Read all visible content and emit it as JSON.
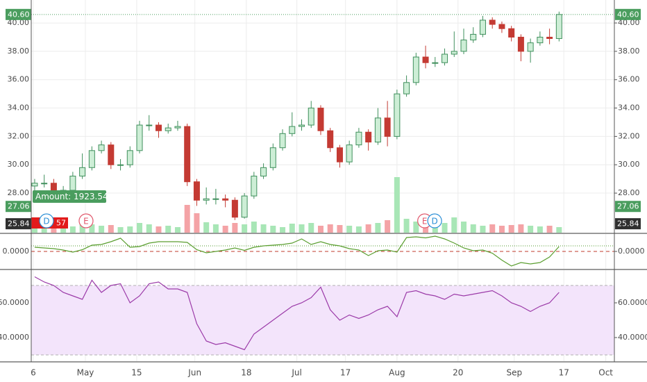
{
  "chart_data": [
    {
      "type": "candlestick",
      "x": [
        0,
        1,
        2,
        3,
        4,
        5,
        6,
        7,
        8,
        9,
        10,
        11,
        12,
        13,
        14,
        15,
        16,
        17,
        18,
        19,
        20,
        21,
        22,
        23,
        24,
        25,
        26,
        27,
        28,
        29,
        30,
        31,
        32,
        33,
        34,
        35,
        36,
        37,
        38,
        39,
        40,
        41,
        42,
        43,
        44,
        45,
        46,
        47,
        48,
        49,
        50,
        51,
        52,
        53,
        54,
        55
      ],
      "open": [
        28.5,
        28.7,
        28.7,
        28.0,
        28.2,
        29.2,
        29.8,
        31.0,
        31.4,
        30.0,
        30.0,
        31.0,
        32.8,
        32.8,
        32.4,
        32.6,
        32.7,
        28.8,
        27.5,
        27.6,
        27.6,
        27.5,
        26.3,
        27.8,
        29.2,
        29.8,
        31.2,
        32.2,
        32.7,
        32.8,
        34.0,
        32.4,
        31.2,
        30.2,
        31.4,
        32.3,
        31.6,
        33.3,
        32.0,
        35.0,
        35.8,
        37.6,
        37.2,
        37.2,
        37.8,
        38.0,
        38.8,
        39.2,
        40.2,
        39.9,
        39.6,
        39.0,
        38.0,
        38.6,
        39.0,
        38.9
      ],
      "high": [
        29.0,
        29.3,
        29.0,
        28.5,
        29.5,
        30.8,
        31.3,
        31.7,
        31.6,
        30.4,
        31.3,
        33.1,
        33.5,
        33.0,
        32.9,
        33.1,
        32.9,
        29.0,
        28.4,
        28.3,
        27.9,
        27.7,
        28.0,
        29.5,
        30.1,
        31.5,
        32.5,
        33.7,
        33.2,
        34.5,
        34.2,
        32.6,
        31.4,
        31.7,
        32.6,
        32.5,
        34.0,
        34.5,
        35.3,
        36.3,
        37.9,
        38.4,
        37.6,
        38.2,
        39.4,
        39.6,
        39.7,
        40.5,
        40.4,
        40.1,
        39.8,
        39.2,
        38.9,
        39.4,
        39.6,
        40.8
      ],
      "low": [
        28.2,
        28.4,
        27.7,
        27.6,
        28.0,
        29.0,
        29.6,
        30.8,
        29.7,
        29.6,
        29.8,
        30.8,
        32.4,
        31.9,
        32.2,
        32.4,
        28.5,
        27.1,
        27.2,
        27.2,
        27.0,
        26.1,
        26.2,
        27.6,
        29.0,
        29.6,
        31.0,
        32.0,
        32.4,
        32.6,
        32.1,
        30.9,
        29.8,
        30.0,
        31.2,
        31.0,
        31.4,
        31.3,
        31.8,
        34.8,
        35.6,
        36.8,
        36.9,
        37.0,
        37.6,
        37.8,
        38.6,
        39.0,
        39.6,
        39.3,
        38.7,
        37.3,
        37.2,
        38.4,
        38.5,
        38.7
      ],
      "close": [
        28.7,
        28.7,
        28.0,
        28.2,
        29.2,
        29.8,
        31.0,
        31.4,
        30.0,
        30.0,
        31.0,
        32.8,
        32.8,
        32.4,
        32.6,
        32.7,
        28.8,
        27.5,
        27.6,
        27.6,
        27.5,
        26.3,
        27.8,
        29.2,
        29.8,
        31.2,
        32.2,
        32.7,
        32.8,
        34.0,
        32.4,
        31.2,
        30.2,
        31.4,
        32.3,
        31.6,
        33.3,
        32.0,
        35.0,
        35.8,
        37.6,
        37.2,
        37.2,
        37.8,
        38.0,
        38.8,
        39.2,
        40.2,
        39.9,
        39.6,
        39.0,
        38.0,
        38.6,
        39.0,
        38.9,
        40.6
      ],
      "up_color": "#3f8f5c",
      "up_fill": "#cdeed6",
      "down_color": "#c43a33",
      "xlim": [
        -0.36,
        60.8
      ],
      "xticks": [
        {
          "value": -0.15,
          "label": "6"
        },
        {
          "value": 5.32,
          "label": "May"
        },
        {
          "value": 10.7,
          "label": "15"
        },
        {
          "value": 16.8,
          "label": "Jun"
        },
        {
          "value": 22.2,
          "label": "18"
        },
        {
          "value": 27.5,
          "label": "Jul"
        },
        {
          "value": 32.6,
          "label": "17"
        },
        {
          "value": 38.0,
          "label": "Aug"
        },
        {
          "value": 44.4,
          "label": "20"
        },
        {
          "value": 50.3,
          "label": "Sep"
        },
        {
          "value": 55.5,
          "label": "17"
        },
        {
          "value": 59.9,
          "label": "Oct"
        }
      ],
      "ylim": [
        25.21,
        41.62
      ],
      "yticks": [
        {
          "value": 28,
          "label": "28.00"
        },
        {
          "value": 30,
          "label": "30.00"
        },
        {
          "value": 32,
          "label": "32.00"
        },
        {
          "value": 34,
          "label": "34.00"
        },
        {
          "value": 36,
          "label": "36.00"
        },
        {
          "value": 38,
          "label": "38.00"
        },
        {
          "value": 40,
          "label": "40.00"
        }
      ],
      "grid": true,
      "price_markers": [
        {
          "value": 40.6,
          "label": "40.60",
          "color": "#4a9d5e",
          "dotted_line": true
        },
        {
          "value": 27.06,
          "label": "27.06",
          "color": "#4a9d5e"
        },
        {
          "value": 25.84,
          "label": "25.84",
          "color": "#2f2f2f"
        }
      ],
      "annotation": "Amount: 1923.54",
      "order_label": "57",
      "events": [
        {
          "x": 1.24,
          "label": "D",
          "color": "#2b8fd6"
        },
        {
          "x": 5.39,
          "label": "E",
          "color": "#e0566a"
        },
        {
          "x": 40.9,
          "label": "E",
          "color": "#e0566a"
        },
        {
          "x": 41.95,
          "label": "D",
          "color": "#2b8fd6"
        }
      ],
      "volume": {
        "values": [
          10,
          12,
          8,
          10,
          9,
          14,
          12,
          10,
          11,
          8,
          9,
          14,
          12,
          9,
          10,
          8,
          40,
          28,
          15,
          12,
          10,
          14,
          12,
          16,
          12,
          10,
          8,
          13,
          12,
          14,
          10,
          12,
          11,
          10,
          9,
          12,
          14,
          18,
          80,
          20,
          16,
          18,
          12,
          14,
          22,
          16,
          12,
          10,
          12,
          10,
          11,
          12,
          10,
          9,
          10,
          8
        ],
        "ylim": [
          0,
          335
        ],
        "up_color": "#a8e6b6",
        "down_color": "#f4a3a6"
      }
    },
    {
      "type": "line",
      "values": [
        0.24,
        0.2,
        0.16,
        0.08,
        -0.04,
        0.1,
        0.36,
        0.4,
        0.56,
        0.76,
        0.24,
        0.28,
        0.48,
        0.56,
        0.56,
        0.56,
        0.52,
        0.1,
        -0.08,
        0,
        0.08,
        0.2,
        0.06,
        0.24,
        0.32,
        0.36,
        0.4,
        0.48,
        0.72,
        0.4,
        0.56,
        0.4,
        0.32,
        0.16,
        0.08,
        -0.24,
        0.04,
        0.08,
        -0.04,
        0.8,
        0.84,
        0.78,
        0.88,
        0.72,
        0.48,
        0.2,
        0.04,
        0.08,
        -0.1,
        -0.5,
        -0.84,
        -0.64,
        -0.72,
        -0.64,
        -0.32,
        0.28
      ],
      "color": "#5a9e2f",
      "ylim": [
        -1,
        1
      ],
      "yticks": [
        {
          "value": 0,
          "label": "0.0000"
        }
      ],
      "reference_lines": [
        {
          "value": 0,
          "color": "#c0392b",
          "dash": "5,4"
        },
        {
          "value": 0.32,
          "color": "#4c9a2a",
          "dash": "1,2"
        }
      ]
    },
    {
      "type": "line",
      "values": [
        75,
        72,
        70,
        66,
        64,
        62,
        73,
        66,
        70,
        71,
        60,
        64,
        71,
        72,
        68,
        68,
        66,
        48,
        38,
        36,
        37,
        35,
        33,
        42,
        46,
        50,
        54,
        58,
        60,
        63,
        69,
        56,
        50,
        53,
        51,
        53,
        56,
        58,
        52,
        66,
        67,
        65,
        64,
        62,
        65,
        64,
        65,
        66,
        67,
        64,
        60,
        58,
        55,
        58,
        60,
        66
      ],
      "color": "#9b3aa8",
      "ylim": [
        26.4,
        78.8
      ],
      "yticks": [
        {
          "value": 40,
          "label": "40.0000"
        },
        {
          "value": 60,
          "label": "60.0000"
        }
      ],
      "band": {
        "range": [
          30,
          70
        ],
        "color": "#f3e4fb"
      }
    }
  ]
}
